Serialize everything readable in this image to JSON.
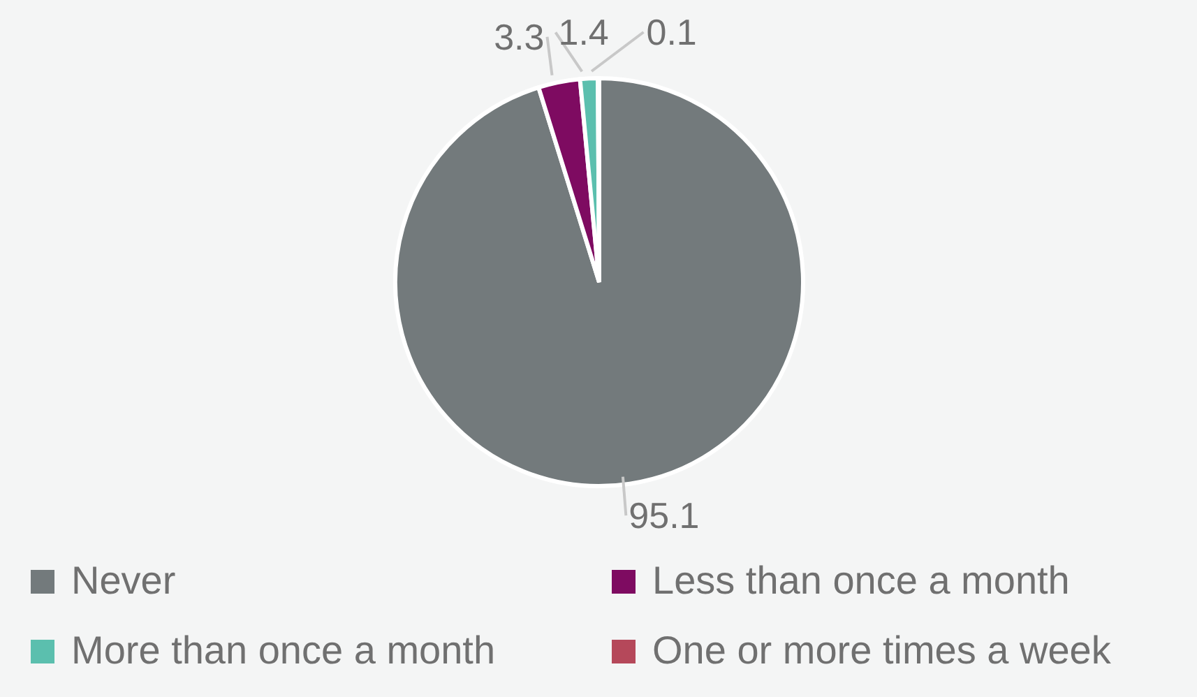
{
  "chart_data": {
    "type": "pie",
    "categories": [
      "Never",
      "Less than once a month",
      "More than once a month",
      "One or more times a week"
    ],
    "values": [
      95.1,
      3.3,
      1.4,
      0.1
    ],
    "colors": [
      "#737a7c",
      "#7e0b61",
      "#5bbfae",
      "#b5485a"
    ],
    "data_labels": true,
    "legend": "bottom"
  }
}
